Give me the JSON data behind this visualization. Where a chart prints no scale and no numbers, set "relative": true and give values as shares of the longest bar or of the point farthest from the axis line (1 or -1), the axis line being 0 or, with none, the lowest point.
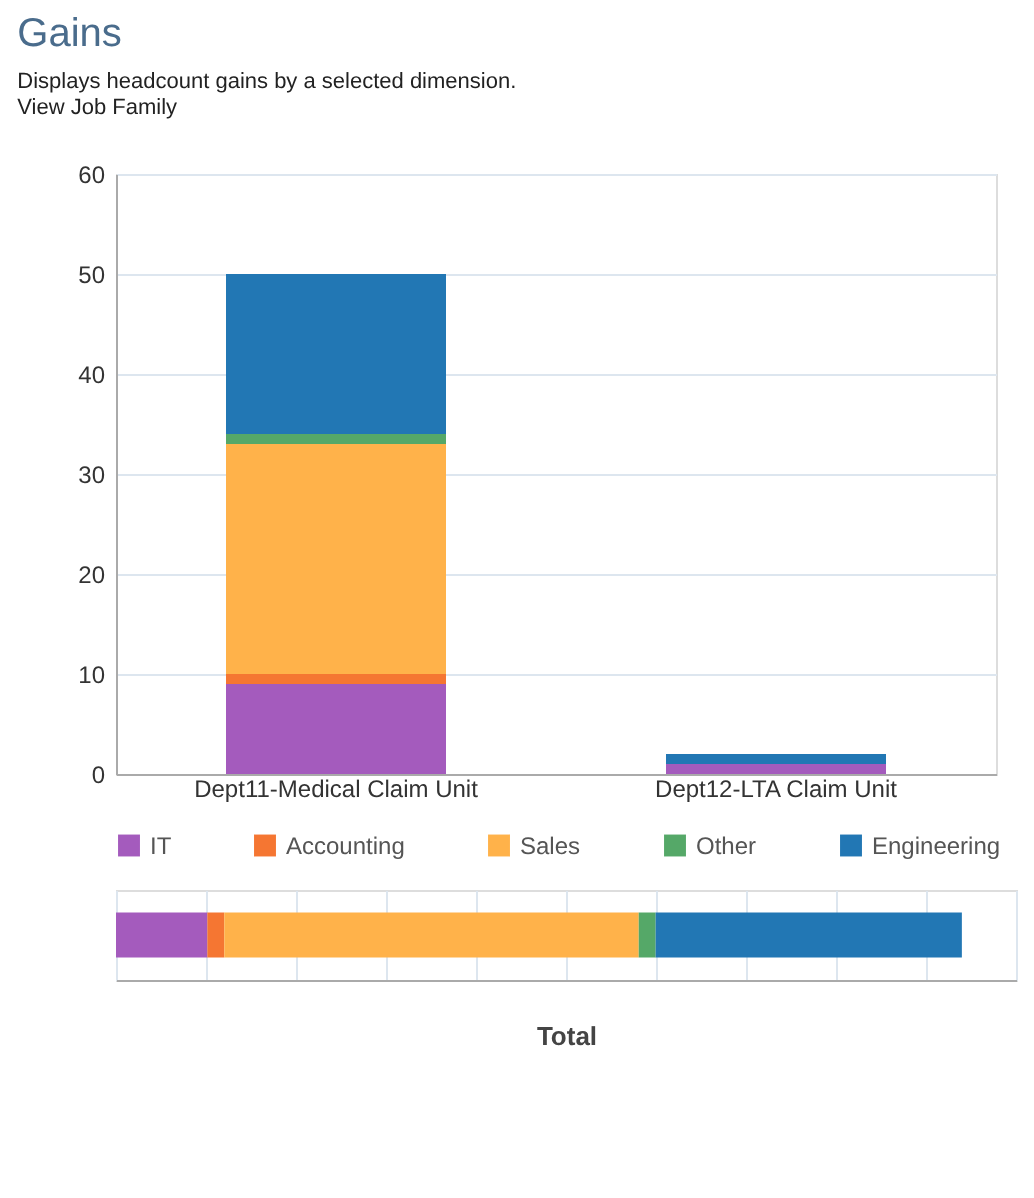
{
  "chart_data": [
    {
      "type": "bar",
      "title": "Gains",
      "subtitle": "Displays headcount gains by a selected dimension.",
      "annotations": [
        "View",
        "Job Family"
      ],
      "categories": [
        "Dept11-Medical Claim Unit",
        "Dept12-LTA Claim Unit"
      ],
      "stacked": true,
      "series": [
        {
          "name": "IT",
          "color": "#a45bbd",
          "values": [
            9,
            1
          ]
        },
        {
          "name": "Accounting",
          "color": "#f57632",
          "values": [
            1,
            0
          ]
        },
        {
          "name": "Sales",
          "color": "#ffb24a",
          "values": [
            23,
            0
          ]
        },
        {
          "name": "Other",
          "color": "#55a868",
          "values": [
            1,
            0
          ]
        },
        {
          "name": "Engineering",
          "color": "#2277b4",
          "values": [
            16,
            1
          ]
        }
      ],
      "ylim": [
        0,
        60
      ],
      "yticks": [
        0,
        10,
        20,
        30,
        40,
        50,
        60
      ],
      "grid": "y",
      "legend": "bottom"
    },
    {
      "type": "bar",
      "orientation": "horizontal",
      "stacked": true,
      "relative": true,
      "categories": [
        null
      ],
      "xlabel": "Total",
      "series": [
        {
          "color": "#a45bbd",
          "values": [
            0.108
          ]
        },
        {
          "color": "#f57632",
          "values": [
            0.02
          ]
        },
        {
          "color": "#ffb24a",
          "values": [
            0.49
          ]
        },
        {
          "color": "#55a868",
          "values": [
            0.02
          ]
        },
        {
          "color": "#2277b4",
          "values": [
            0.362
          ]
        }
      ],
      "grid": "x"
    }
  ]
}
